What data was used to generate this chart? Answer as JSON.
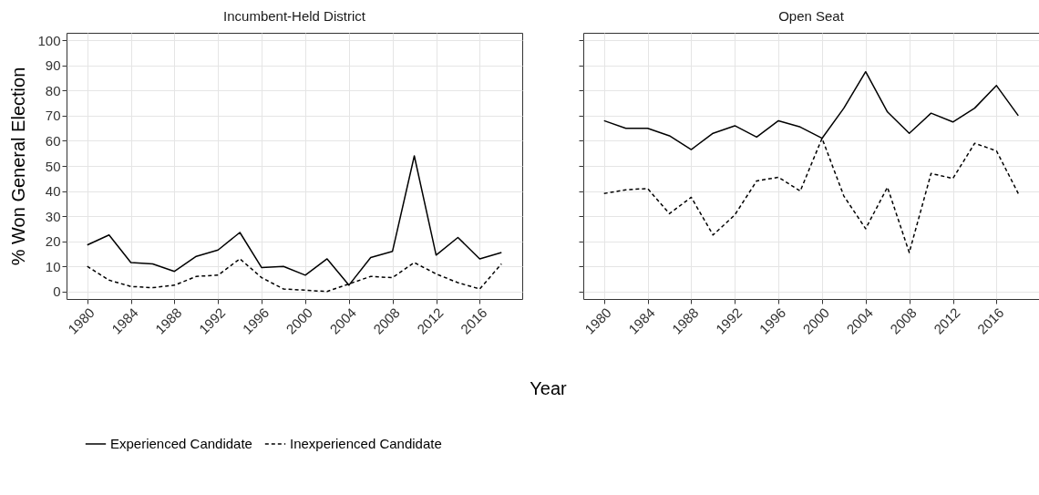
{
  "chart_data": [
    {
      "type": "line",
      "title": "Incumbent-Held District",
      "ylabel": "% Won General Election",
      "xlabel": "Year",
      "x": [
        1980,
        1982,
        1984,
        1986,
        1988,
        1990,
        1992,
        1994,
        1996,
        1998,
        2000,
        2002,
        2004,
        2006,
        2008,
        2010,
        2012,
        2014,
        2016,
        2018
      ],
      "series": [
        {
          "name": "Experienced Candidate",
          "color": "#000000",
          "line_style": "solid",
          "values": [
            18.5,
            22.5,
            11.5,
            11,
            8,
            14,
            16.5,
            23.5,
            9.5,
            10,
            6.5,
            13,
            2.5,
            13.5,
            16,
            54,
            14.5,
            21.5,
            13,
            15.5
          ]
        },
        {
          "name": "Inexperienced Candidate",
          "color": "#000000",
          "line_style": "dashed",
          "values": [
            10,
            4.5,
            2,
            1.5,
            2.5,
            6,
            6.5,
            13,
            5.5,
            1,
            0.5,
            0,
            3,
            6,
            5.5,
            11.5,
            7,
            3.5,
            1,
            11
          ]
        }
      ],
      "xlim": [
        1978.1,
        2019.9
      ],
      "xticks": [
        1980,
        1984,
        1988,
        1992,
        1996,
        2000,
        2004,
        2008,
        2012,
        2016
      ],
      "ylim": [
        -3,
        103
      ],
      "yticks": [
        0,
        10,
        20,
        30,
        40,
        50,
        60,
        70,
        80,
        90,
        100
      ],
      "grid": true,
      "legend": "bottom"
    },
    {
      "type": "line",
      "title": "Open Seat",
      "x": [
        1980,
        1982,
        1984,
        1986,
        1988,
        1990,
        1992,
        1994,
        1996,
        1998,
        2000,
        2002,
        2004,
        2006,
        2008,
        2010,
        2012,
        2014,
        2016,
        2018
      ],
      "series": [
        {
          "name": "Experienced Candidate",
          "color": "#000000",
          "line_style": "solid",
          "values": [
            68,
            65,
            65,
            62,
            56.5,
            63,
            66,
            61.5,
            68,
            65.5,
            61,
            73,
            87.5,
            71.5,
            63,
            71,
            67.5,
            73,
            82,
            70
          ]
        },
        {
          "name": "Inexperienced Candidate",
          "color": "#000000",
          "line_style": "dashed",
          "values": [
            39,
            40.5,
            41,
            31,
            37.5,
            22.5,
            30.5,
            44,
            45.5,
            40,
            61,
            38,
            25,
            41.5,
            15.5,
            47,
            45,
            59,
            56,
            39
          ]
        }
      ],
      "xlim": [
        1978.1,
        2019.9
      ],
      "xticks": [
        1980,
        1984,
        1988,
        1992,
        1996,
        2000,
        2004,
        2008,
        2012,
        2016
      ],
      "ylim": [
        -3,
        103
      ],
      "yticks": [
        0,
        10,
        20,
        30,
        40,
        50,
        60,
        70,
        80,
        90,
        100
      ],
      "grid": true,
      "legend": "bottom",
      "tick_labels": "x"
    }
  ]
}
